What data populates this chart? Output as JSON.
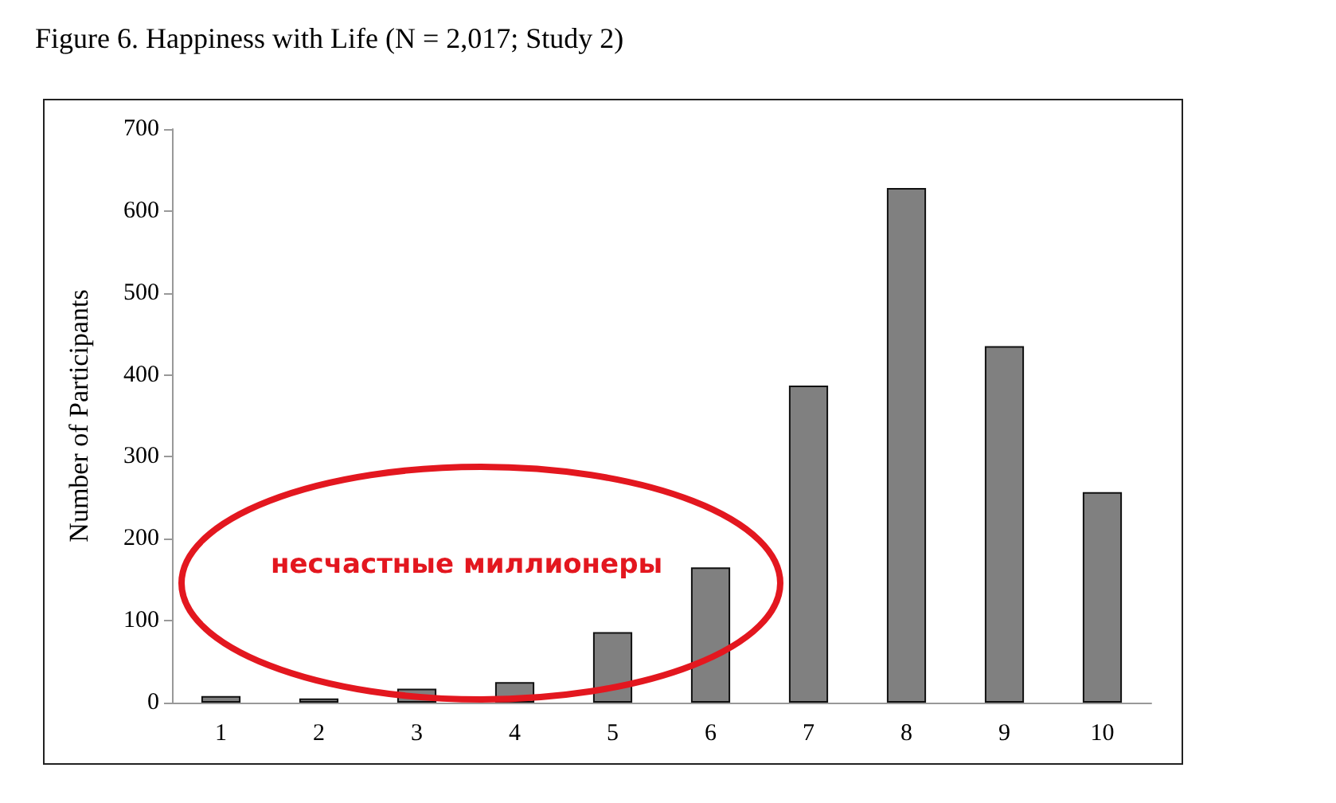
{
  "chart_data": {
    "type": "bar",
    "title": "Figure 6. Happiness with Life (N = 2,017; Study 2)",
    "ylabel": "Number of Participants",
    "categories": [
      "1",
      "2",
      "3",
      "4",
      "5",
      "6",
      "7",
      "8",
      "9",
      "10"
    ],
    "values": [
      8,
      5,
      17,
      25,
      86,
      165,
      387,
      628,
      435,
      257
    ],
    "color": "#808080",
    "ylim": [
      0,
      700
    ],
    "yticks": [
      0,
      100,
      200,
      300,
      400,
      500,
      600,
      700
    ],
    "grid": false,
    "annotations": [
      "несчастные миллионеры"
    ]
  }
}
